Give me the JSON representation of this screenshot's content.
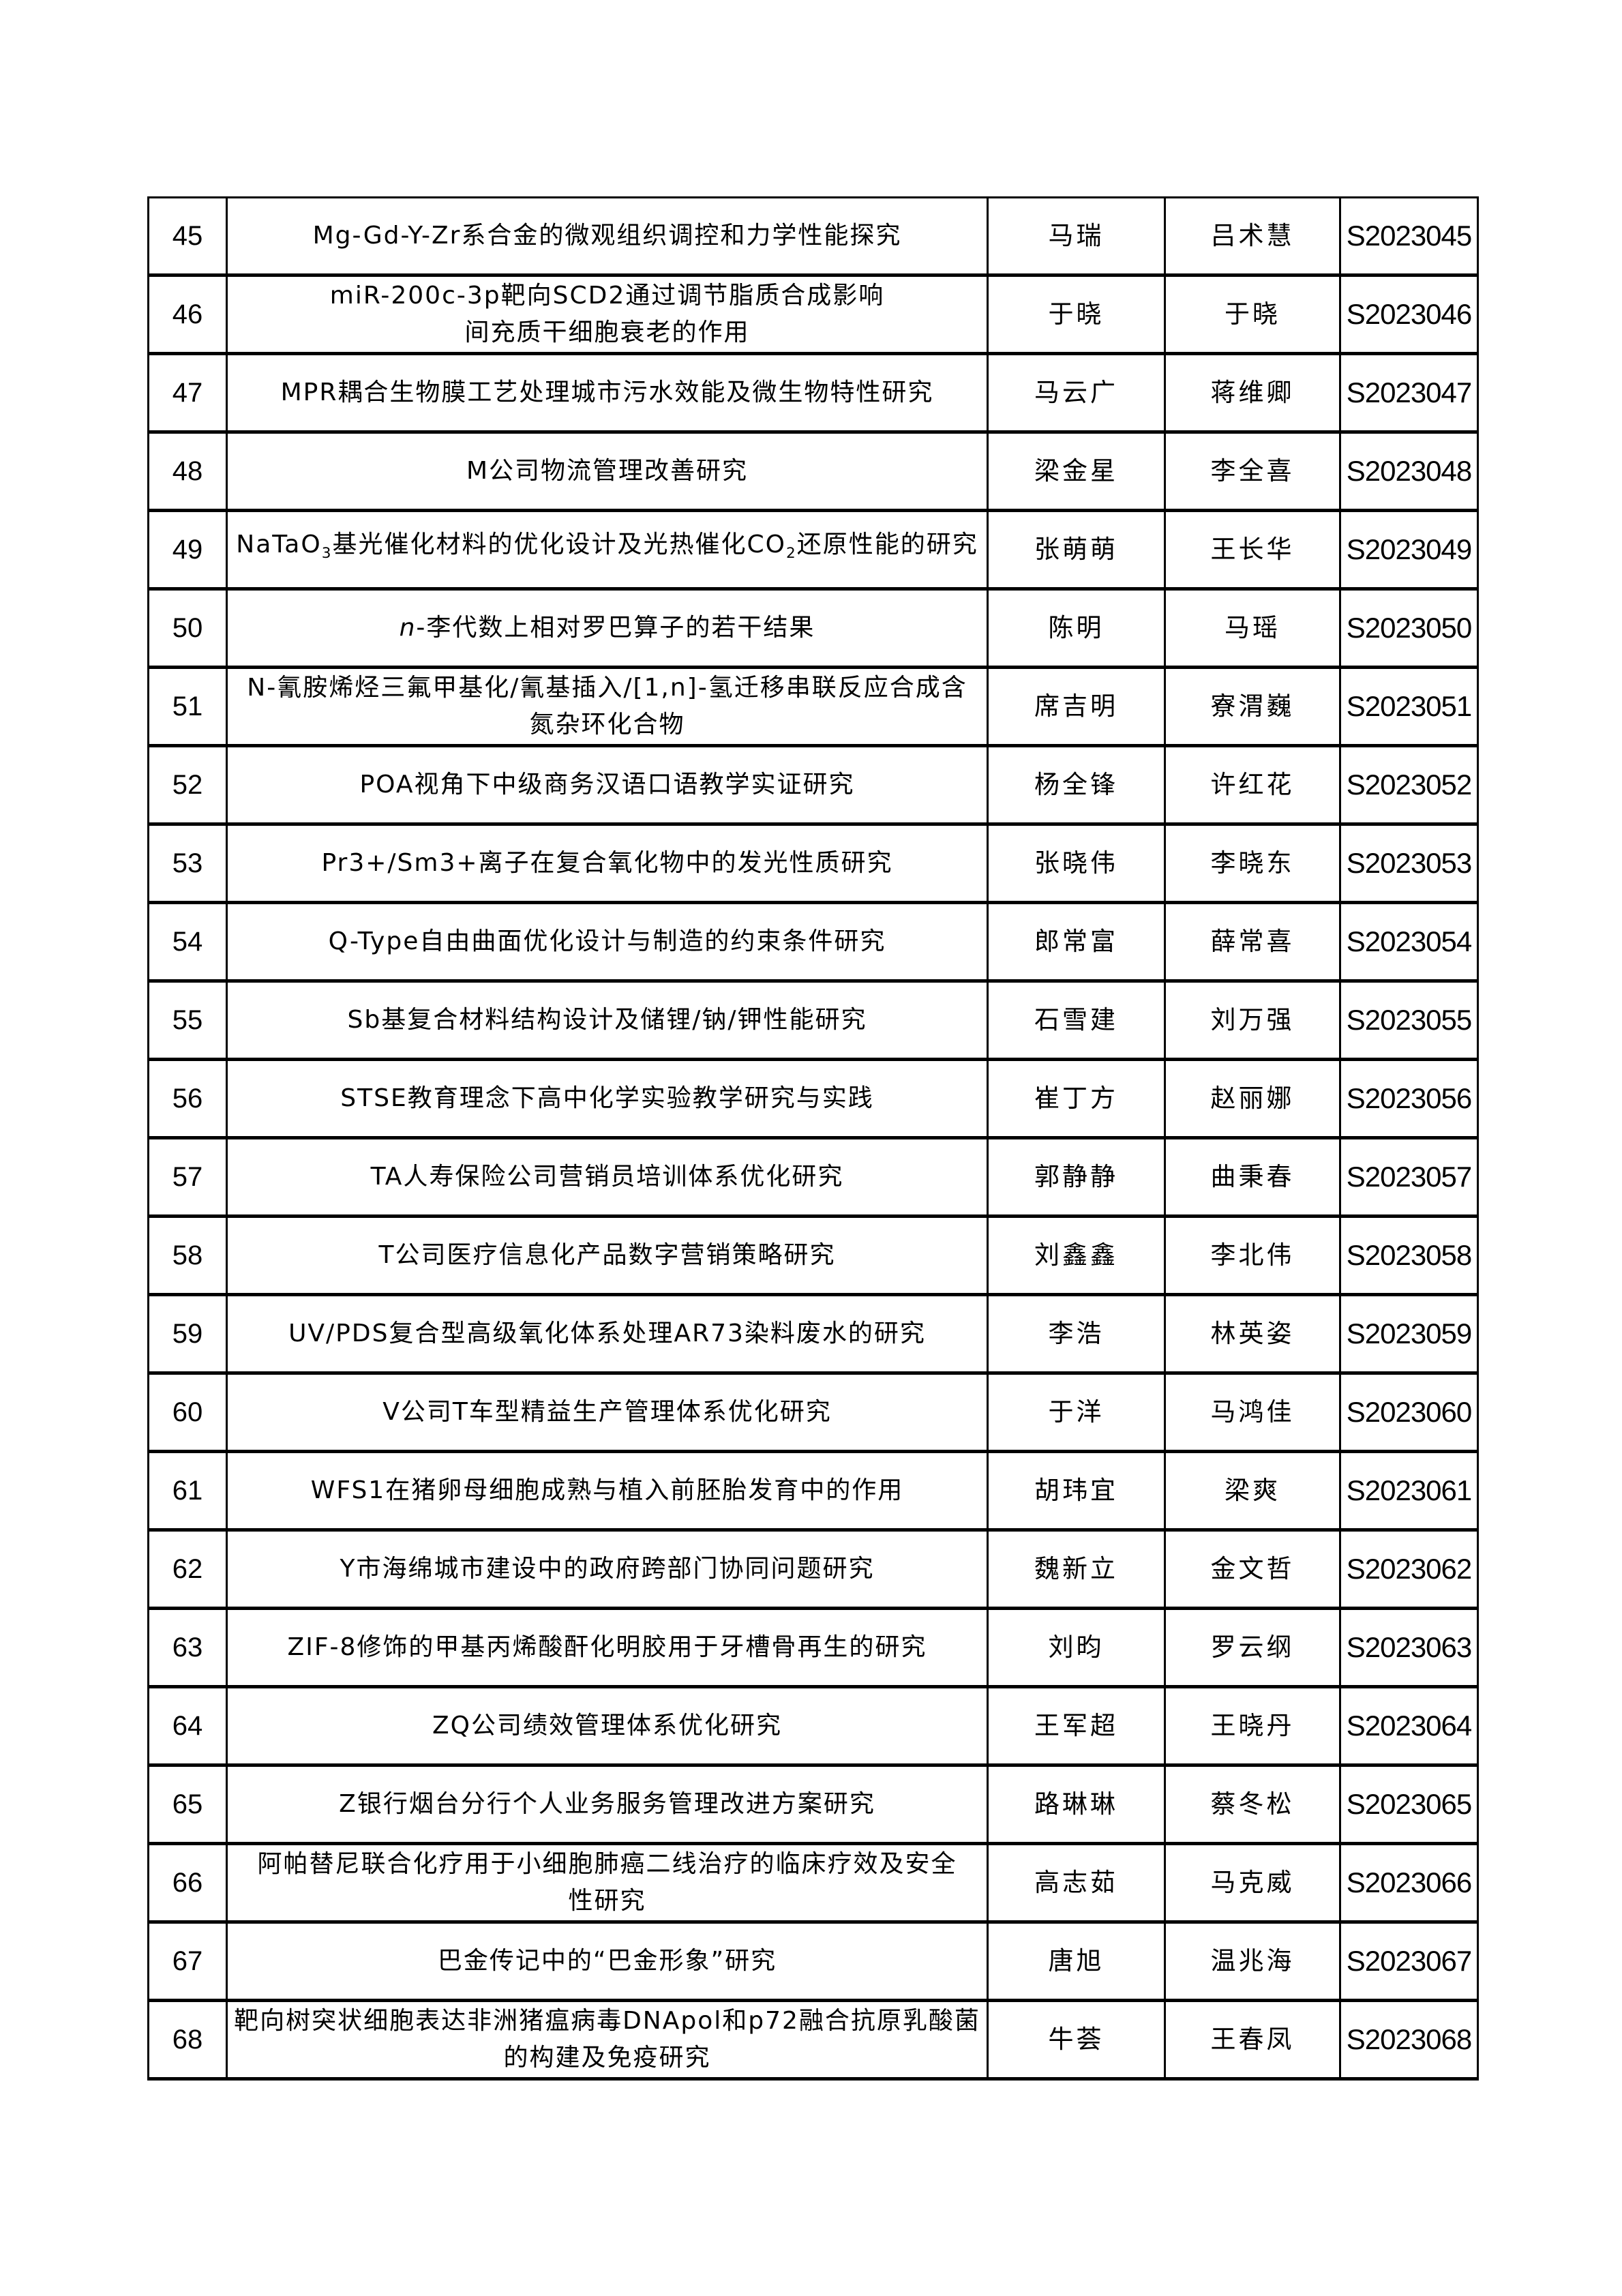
{
  "rows": [
    {
      "no": "45",
      "title": [
        {
          "t": "Mg-Gd-Y-Zr系合金的微观组织调控和力学性能探究"
        }
      ],
      "student": "马瑞",
      "supervisor": "吕术慧",
      "code": "S2023045"
    },
    {
      "no": "46",
      "title": [
        {
          "t": "miR-200c-3p靶向SCD2通过调节脂质合成影响"
        },
        {
          "br": true
        },
        {
          "t": "间充质干细胞衰老的作用"
        }
      ],
      "student": "于晓",
      "supervisor": "于晓",
      "code": "S2023046"
    },
    {
      "no": "47",
      "title": [
        {
          "t": "MPR耦合生物膜工艺处理城市污水效能及微生物特性研究"
        }
      ],
      "student": "马云广",
      "supervisor": "蒋维卿",
      "code": "S2023047"
    },
    {
      "no": "48",
      "title": [
        {
          "t": "M公司物流管理改善研究"
        }
      ],
      "student": "梁金星",
      "supervisor": "李全喜",
      "code": "S2023048"
    },
    {
      "no": "49",
      "title": [
        {
          "t": "NaTaO"
        },
        {
          "sub": "3"
        },
        {
          "t": "基光催化材料的优化设计及光热催化CO"
        },
        {
          "sub": "2"
        },
        {
          "t": "还原性能的研究"
        }
      ],
      "student": "张萌萌",
      "supervisor": "王长华",
      "code": "S2023049"
    },
    {
      "no": "50",
      "title": [
        {
          "i": "n"
        },
        {
          "t": "-李代数上相对罗巴算子的若干结果"
        }
      ],
      "student": "陈明",
      "supervisor": "马瑶",
      "code": "S2023050"
    },
    {
      "no": "51",
      "title": [
        {
          "t": "N-氰胺烯烃三氟甲基化/氰基插入/[1,n]-氢迁移串联反应合成含"
        },
        {
          "br": true
        },
        {
          "t": "氮杂环化合物"
        }
      ],
      "student": "席吉明",
      "supervisor": "寮渭巍",
      "code": "S2023051"
    },
    {
      "no": "52",
      "title": [
        {
          "t": "POA视角下中级商务汉语口语教学实证研究"
        }
      ],
      "student": "杨全锋",
      "supervisor": "许红花",
      "code": "S2023052"
    },
    {
      "no": "53",
      "title": [
        {
          "t": "Pr3+/Sm3+离子在复合氧化物中的发光性质研究"
        }
      ],
      "student": "张晓伟",
      "supervisor": "李晓东",
      "code": "S2023053"
    },
    {
      "no": "54",
      "title": [
        {
          "t": "Q-Type自由曲面优化设计与制造的约束条件研究"
        }
      ],
      "student": "郎常富",
      "supervisor": "薛常喜",
      "code": "S2023054"
    },
    {
      "no": "55",
      "title": [
        {
          "t": "Sb基复合材料结构设计及储锂/钠/钾性能研究"
        }
      ],
      "student": "石雪建",
      "supervisor": "刘万强",
      "code": "S2023055"
    },
    {
      "no": "56",
      "title": [
        {
          "t": "STSE教育理念下高中化学实验教学研究与实践"
        }
      ],
      "student": "崔丁方",
      "supervisor": "赵丽娜",
      "code": "S2023056"
    },
    {
      "no": "57",
      "title": [
        {
          "t": "TA人寿保险公司营销员培训体系优化研究"
        }
      ],
      "student": "郭静静",
      "supervisor": "曲秉春",
      "code": "S2023057"
    },
    {
      "no": "58",
      "title": [
        {
          "t": "T公司医疗信息化产品数字营销策略研究"
        }
      ],
      "student": "刘鑫鑫",
      "supervisor": "李北伟",
      "code": "S2023058"
    },
    {
      "no": "59",
      "title": [
        {
          "t": "UV/PDS复合型高级氧化体系处理AR73染料废水的研究"
        }
      ],
      "student": "李浩",
      "supervisor": "林英姿",
      "code": "S2023059"
    },
    {
      "no": "60",
      "title": [
        {
          "t": "V公司T车型精益生产管理体系优化研究"
        }
      ],
      "student": "于洋",
      "supervisor": "马鸿佳",
      "code": "S2023060"
    },
    {
      "no": "61",
      "title": [
        {
          "t": "WFS1在猪卵母细胞成熟与植入前胚胎发育中的作用"
        }
      ],
      "student": "胡玮宜",
      "supervisor": "梁爽",
      "code": "S2023061"
    },
    {
      "no": "62",
      "title": [
        {
          "t": "Y市海绵城市建设中的政府跨部门协同问题研究"
        }
      ],
      "student": "魏新立",
      "supervisor": "金文哲",
      "code": "S2023062"
    },
    {
      "no": "63",
      "title": [
        {
          "t": "ZIF-8修饰的甲基丙烯酸酐化明胶用于牙槽骨再生的研究"
        }
      ],
      "student": "刘昀",
      "supervisor": "罗云纲",
      "code": "S2023063"
    },
    {
      "no": "64",
      "title": [
        {
          "t": "ZQ公司绩效管理体系优化研究"
        }
      ],
      "student": "王军超",
      "supervisor": "王晓丹",
      "code": "S2023064"
    },
    {
      "no": "65",
      "title": [
        {
          "t": "Z银行烟台分行个人业务服务管理改进方案研究"
        }
      ],
      "student": "路琳琳",
      "supervisor": "蔡冬松",
      "code": "S2023065"
    },
    {
      "no": "66",
      "title": [
        {
          "t": "阿帕替尼联合化疗用于小细胞肺癌二线治疗的临床疗效及安全"
        },
        {
          "br": true
        },
        {
          "t": "性研究"
        }
      ],
      "student": "高志茹",
      "supervisor": "马克威",
      "code": "S2023066"
    },
    {
      "no": "67",
      "title": [
        {
          "t": "巴金传记中的“巴金形象”研究"
        }
      ],
      "student": "唐旭",
      "supervisor": "温兆海",
      "code": "S2023067"
    },
    {
      "no": "68",
      "title": [
        {
          "t": "靶向树突状细胞表达非洲猪瘟病毒DNApol和p72融合抗原乳酸菌"
        },
        {
          "br": true
        },
        {
          "t": "的构建及免疫研究"
        }
      ],
      "student": "牛荟",
      "supervisor": "王春凤",
      "code": "S2023068"
    }
  ]
}
